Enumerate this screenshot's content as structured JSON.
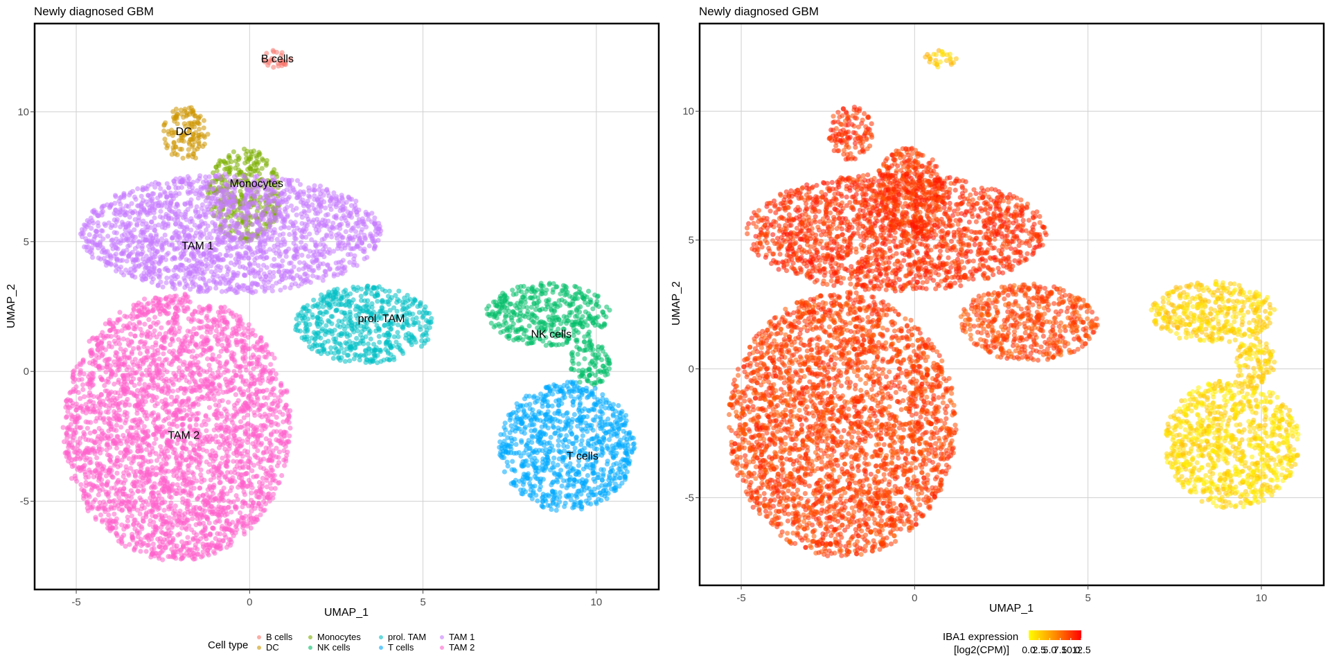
{
  "chart_data": [
    {
      "type": "scatter",
      "title": "Newly diagnosed GBM",
      "xlabel": "UMAP_1",
      "ylabel": "UMAP_2",
      "xlim": [
        -6.2,
        11.8
      ],
      "ylim": [
        -8.4,
        13.4
      ],
      "x_ticks": [
        -5,
        0,
        5,
        10
      ],
      "y_ticks": [
        -5,
        0,
        5,
        10
      ],
      "x_tick_labels": [
        "-5",
        "0",
        "5",
        "10"
      ],
      "y_tick_labels": [
        "-5",
        "0",
        "5",
        "10"
      ],
      "grid": true,
      "legend_position": "bottom",
      "legend": {
        "title": "Cell type",
        "entries": [
          "B cells",
          "DC",
          "Monocytes",
          "NK cells",
          "prol. TAM",
          "T cells",
          "TAM 1",
          "TAM 2"
        ]
      },
      "series": [
        {
          "name": "B cells",
          "color": "#F8766D",
          "label_pos": [
            0.8,
            11.9
          ],
          "cells": [
            [
              0.3,
              11.7,
              1.2,
              12.4
            ]
          ]
        },
        {
          "name": "DC",
          "color": "#CD9600",
          "label_pos": [
            -1.9,
            9.1
          ],
          "cells": [
            [
              -2.5,
              8.1,
              -1.2,
              10.2
            ]
          ]
        },
        {
          "name": "Monocytes",
          "color": "#7CAE00",
          "label_pos": [
            0.2,
            7.1
          ],
          "cells": [
            [
              -1.2,
              5.0,
              0.9,
              8.6
            ]
          ]
        },
        {
          "name": "NK cells",
          "color": "#00BE67",
          "label_pos": [
            8.7,
            1.3
          ],
          "cells": [
            [
              6.8,
              1.0,
              10.4,
              3.4
            ],
            [
              9.2,
              -0.6,
              10.4,
              1.2
            ]
          ]
        },
        {
          "name": "prol. TAM",
          "color": "#00BFC4",
          "label_pos": [
            3.8,
            1.9
          ],
          "cells": [
            [
              1.3,
              0.3,
              5.3,
              3.3
            ]
          ]
        },
        {
          "name": "T cells",
          "color": "#00A9FF",
          "label_pos": [
            9.6,
            -3.4
          ],
          "cells": [
            [
              7.2,
              -5.4,
              11.1,
              -0.4
            ]
          ]
        },
        {
          "name": "TAM 1",
          "color": "#C77CFF",
          "label_pos": [
            -1.5,
            4.7
          ],
          "cells": [
            [
              -4.9,
              3.0,
              3.8,
              7.6
            ]
          ]
        },
        {
          "name": "TAM 2",
          "color": "#FF61CC",
          "label_pos": [
            -1.9,
            -2.6
          ],
          "cells": [
            [
              -5.4,
              -7.3,
              1.2,
              3.0
            ]
          ]
        }
      ]
    },
    {
      "type": "scatter",
      "title": "Newly diagnosed GBM",
      "xlabel": "UMAP_1",
      "ylabel": "UMAP_2",
      "xlim": [
        -6.2,
        11.8
      ],
      "ylim": [
        -8.4,
        13.4
      ],
      "x_ticks": [
        -5,
        0,
        5,
        10
      ],
      "y_ticks": [
        -5,
        0,
        5,
        10
      ],
      "x_tick_labels": [
        "-5",
        "0",
        "5",
        "10"
      ],
      "y_tick_labels": [
        "-5",
        "0",
        "5",
        "10"
      ],
      "grid": true,
      "color_variable": "IBA1 expression [log2(CPM)]",
      "color_scale": {
        "low": "#FFFF00",
        "high": "#FF0000",
        "min": 0,
        "max": 12.5
      },
      "legend": {
        "title_line1": "IBA1 expression",
        "title_line2": "[log2(CPM)]",
        "tick_labels": [
          "0.0",
          "2.5",
          "5.0",
          "7.5",
          "10.0",
          "12.5"
        ]
      },
      "expression_by_cell_type": {
        "B cells": 3.0,
        "DC": 10.5,
        "Monocytes": 10.0,
        "NK cells": 2.5,
        "prol. TAM": 9.5,
        "T cells": 2.0,
        "TAM 1": 10.5,
        "TAM 2": 9.8
      }
    }
  ]
}
